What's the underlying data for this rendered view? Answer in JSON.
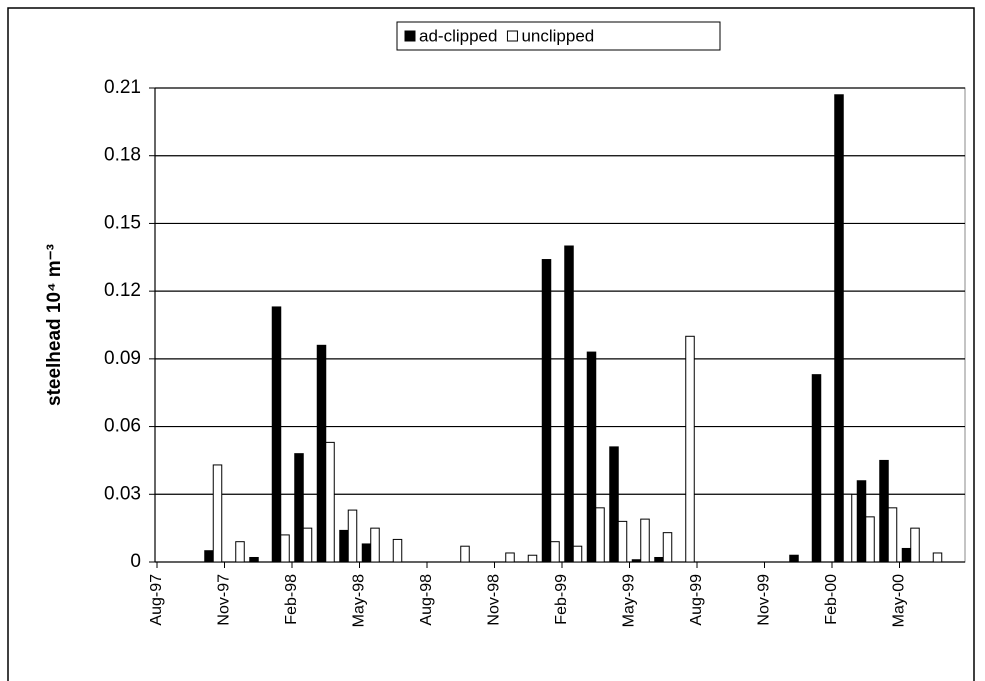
{
  "chart_data": {
    "type": "bar",
    "y_label": "steelhead  10⁴ m⁻³",
    "categories": [
      "Aug-97",
      null,
      null,
      "Nov-97",
      null,
      null,
      "Feb-98",
      null,
      null,
      "May-98",
      null,
      null,
      "Aug-98",
      null,
      null,
      "Nov-98",
      null,
      null,
      "Feb-99",
      null,
      null,
      "May-99",
      null,
      null,
      "Aug-99",
      null,
      null,
      "Nov-99",
      null,
      null,
      "Feb-00",
      null,
      null,
      "May-00",
      null,
      null
    ],
    "series": [
      {
        "name": "ad-clipped",
        "color": "#000000",
        "values": [
          null,
          null,
          0.005,
          null,
          0.002,
          0.113,
          0.048,
          0.096,
          0.014,
          0.008,
          null,
          null,
          null,
          null,
          null,
          null,
          null,
          0.134,
          0.14,
          0.093,
          0.051,
          0.001,
          0.002,
          null,
          null,
          null,
          null,
          null,
          0.003,
          0.083,
          0.207,
          0.036,
          0.045,
          0.006,
          null,
          null
        ]
      },
      {
        "name": "unclipped",
        "color": "#ffffff",
        "values": [
          null,
          null,
          0.043,
          0.009,
          null,
          0.012,
          0.015,
          0.053,
          0.023,
          0.015,
          0.01,
          null,
          null,
          0.007,
          null,
          0.004,
          0.003,
          0.009,
          0.007,
          0.024,
          0.018,
          0.019,
          0.013,
          0.1,
          null,
          null,
          null,
          null,
          null,
          null,
          0.03,
          0.02,
          0.024,
          0.015,
          0.004,
          null
        ]
      }
    ],
    "ylim": [
      0,
      0.21
    ],
    "yticks": [
      0,
      0.03,
      0.06,
      0.09,
      0.12,
      0.15,
      0.18,
      0.21
    ],
    "grid": true,
    "legend": "top"
  }
}
